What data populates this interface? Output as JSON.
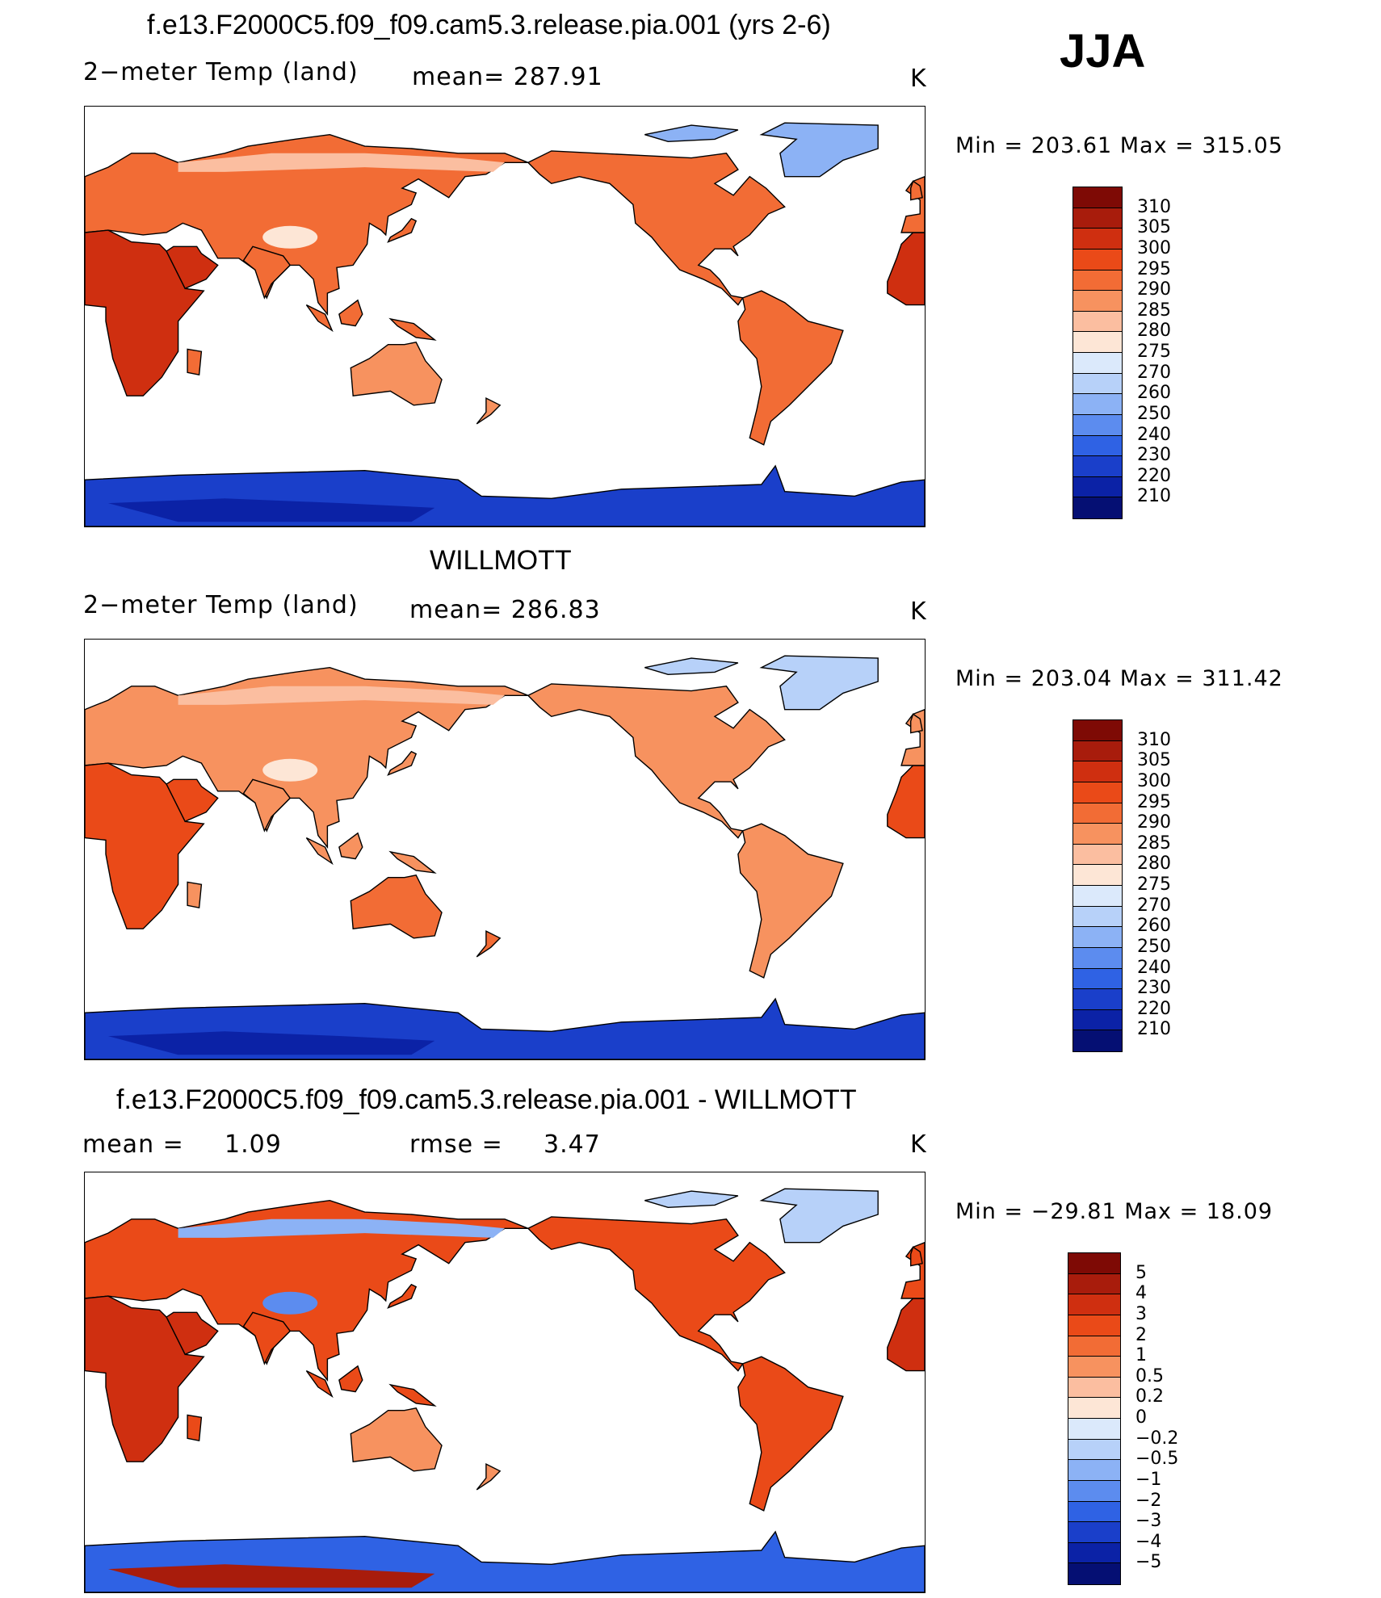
{
  "season": "JJA",
  "panels": [
    {
      "title": "f.e13.F2000C5.f09_f09.cam5.3.release.pia.001 (yrs 2-6)",
      "left_label": "2−meter Temp (land)",
      "mid_label": "mean=  287.91",
      "unit": "K",
      "minmax": "Min  =  203.61  Max  =  315.05",
      "colorbar_labels": [
        "310",
        "305",
        "300",
        "295",
        "290",
        "285",
        "280",
        "275",
        "270",
        "260",
        "250",
        "240",
        "230",
        "220",
        "210"
      ]
    },
    {
      "title": "WILLMOTT",
      "left_label": "2−meter Temp (land)",
      "mid_label": "mean=  286.83",
      "unit": "K",
      "minmax": "Min  =  203.04  Max  =  311.42",
      "colorbar_labels": [
        "310",
        "305",
        "300",
        "295",
        "290",
        "285",
        "280",
        "275",
        "270",
        "260",
        "250",
        "240",
        "230",
        "220",
        "210"
      ]
    },
    {
      "title": "f.e13.F2000C5.f09_f09.cam5.3.release.pia.001 - WILLMOTT",
      "left_label": "mean  =",
      "left_value": "1.09",
      "mid_label": "rmse  =",
      "mid_value": "3.47",
      "unit": "K",
      "minmax": "Min  =  −29.81  Max  =     18.09",
      "colorbar_labels": [
        "5",
        "4",
        "3",
        "2",
        "1",
        "0.5",
        "0.2",
        "0",
        "−0.2",
        "−0.5",
        "−1",
        "−2",
        "−3",
        "−4",
        "−5"
      ]
    }
  ],
  "colorbar_colors": [
    "#7e0a05",
    "#a81c0c",
    "#cf2f10",
    "#ea4a18",
    "#f26c35",
    "#f7925f",
    "#fbbea0",
    "#fde6d6",
    "#dbe9fb",
    "#b7d1f9",
    "#8cb2f5",
    "#5c8cef",
    "#2f62e4",
    "#1a3fca",
    "#0b22a6",
    "#050f73"
  ]
}
